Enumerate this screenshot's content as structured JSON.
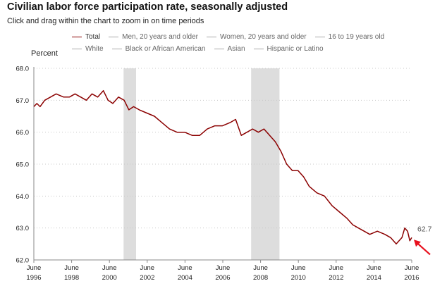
{
  "header": {
    "title": "Civilian labor force participation rate, seasonally adjusted",
    "subtitle": "Click and drag within the chart to zoom in on time periods"
  },
  "legend": {
    "row1": [
      "Total",
      "Men, 20 years and older",
      "Women, 20 years and older",
      "16 to 19 years old"
    ],
    "row2": [
      "White",
      "Black or African American",
      "Asian",
      "Hispanic or Latino"
    ]
  },
  "chart_data": {
    "type": "line",
    "title": "Civilian labor force participation rate, seasonally adjusted",
    "ylabel": "Percent",
    "xlabel": "",
    "ylim": [
      62.0,
      68.0
    ],
    "yticks": [
      "68.0",
      "67.0",
      "66.0",
      "65.0",
      "64.0",
      "63.0",
      "62.0"
    ],
    "xlim": [
      1996.42,
      2016.42
    ],
    "xticks": [
      {
        "x": 1996.42,
        "top": "June",
        "bottom": "1996"
      },
      {
        "x": 1998.42,
        "top": "June",
        "bottom": "1998"
      },
      {
        "x": 2000.42,
        "top": "June",
        "bottom": "2000"
      },
      {
        "x": 2002.42,
        "top": "June",
        "bottom": "2002"
      },
      {
        "x": 2004.42,
        "top": "June",
        "bottom": "2004"
      },
      {
        "x": 2006.42,
        "top": "June",
        "bottom": "2006"
      },
      {
        "x": 2008.42,
        "top": "June",
        "bottom": "2008"
      },
      {
        "x": 2010.42,
        "top": "June",
        "bottom": "2010"
      },
      {
        "x": 2012.42,
        "top": "June",
        "bottom": "2012"
      },
      {
        "x": 2014.42,
        "top": "June",
        "bottom": "2014"
      },
      {
        "x": 2016.42,
        "top": "June",
        "bottom": "2016"
      }
    ],
    "recessions": [
      {
        "start": 2001.17,
        "end": 2001.83
      },
      {
        "start": 2007.92,
        "end": 2009.42
      }
    ],
    "line_color": "#8b0000",
    "recession_color": "#dddddd",
    "end_label": "62.7",
    "arrow_color": "#e8101e",
    "series": [
      {
        "name": "Total",
        "x": [
          1996.42,
          1996.58,
          1996.75,
          1997.0,
          1997.3,
          1997.6,
          1998.0,
          1998.3,
          1998.6,
          1998.9,
          1999.2,
          1999.5,
          1999.8,
          2000.1,
          2000.35,
          2000.6,
          2000.9,
          2001.2,
          2001.45,
          2001.7,
          2002.0,
          2002.4,
          2002.8,
          2003.2,
          2003.6,
          2004.0,
          2004.4,
          2004.8,
          2005.2,
          2005.6,
          2006.0,
          2006.4,
          2006.8,
          2007.1,
          2007.4,
          2007.7,
          2008.0,
          2008.3,
          2008.6,
          2008.9,
          2009.2,
          2009.5,
          2009.8,
          2010.1,
          2010.4,
          2010.7,
          2011.0,
          2011.4,
          2011.8,
          2012.2,
          2012.6,
          2013.0,
          2013.3,
          2013.6,
          2013.9,
          2014.2,
          2014.6,
          2015.0,
          2015.3,
          2015.6,
          2015.9,
          2016.05,
          2016.2,
          2016.32,
          2016.42
        ],
        "values": [
          66.8,
          66.9,
          66.8,
          67.0,
          67.1,
          67.2,
          67.1,
          67.1,
          67.2,
          67.1,
          67.0,
          67.2,
          67.1,
          67.3,
          67.0,
          66.9,
          67.1,
          67.0,
          66.7,
          66.8,
          66.7,
          66.6,
          66.5,
          66.3,
          66.1,
          66.0,
          66.0,
          65.9,
          65.9,
          66.1,
          66.2,
          66.2,
          66.3,
          66.4,
          65.9,
          66.0,
          66.1,
          66.0,
          66.1,
          65.9,
          65.7,
          65.4,
          65.0,
          64.8,
          64.8,
          64.6,
          64.3,
          64.1,
          64.0,
          63.7,
          63.5,
          63.3,
          63.1,
          63.0,
          62.9,
          62.8,
          62.9,
          62.8,
          62.7,
          62.5,
          62.7,
          63.0,
          62.9,
          62.6,
          62.7
        ]
      }
    ]
  }
}
